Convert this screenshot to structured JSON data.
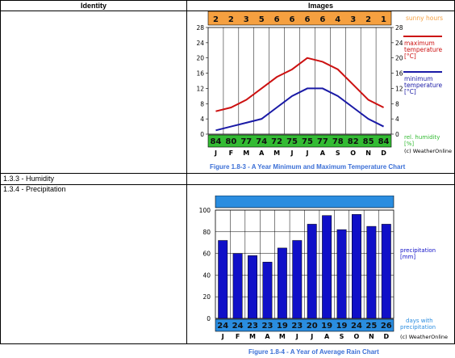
{
  "table": {
    "headers": [
      "Identity",
      "Images"
    ],
    "rows": [
      {
        "identity": "",
        "image": "figure1"
      },
      {
        "identity": "1.3.3 - Humidity",
        "image": ""
      },
      {
        "identity": "1.3.4 - Precipitation",
        "image": "figure2"
      }
    ]
  },
  "chart_data": [
    {
      "type": "line",
      "caption": "Figure 1.8-3 - A Year Minimum and Maximum Temperature Chart",
      "categories": [
        "J",
        "F",
        "M",
        "A",
        "M",
        "J",
        "J",
        "A",
        "S",
        "O",
        "N",
        "D"
      ],
      "sunny_hours": [
        2,
        2,
        3,
        5,
        6,
        6,
        6,
        6,
        4,
        3,
        2,
        1
      ],
      "sunny_label": "sunny hours",
      "humidity": [
        84,
        80,
        77,
        74,
        72,
        75,
        75,
        77,
        78,
        82,
        85,
        84
      ],
      "humidity_label": "rel. humidity [%]",
      "series": [
        {
          "name": "maximum temperature [°C]",
          "color": "#cc1111",
          "values": [
            6,
            7,
            9,
            12,
            15,
            17,
            20,
            19,
            17,
            13,
            9,
            7
          ]
        },
        {
          "name": "minimum temperature [°C]",
          "color": "#1a1aa6",
          "values": [
            1,
            2,
            3,
            4,
            7,
            10,
            12,
            12,
            10,
            7,
            4,
            2
          ]
        }
      ],
      "y_ticks": [
        0,
        4,
        8,
        12,
        16,
        20,
        24,
        28
      ],
      "ylim": [
        0,
        28
      ],
      "credit": "(c) WeatherOnline",
      "colors": {
        "sun_band": "#f5a040",
        "humidity_band": "#33bb33"
      }
    },
    {
      "type": "bar",
      "caption": "Figure 1.8-4 - A Year of Average Rain Chart",
      "categories": [
        "J",
        "F",
        "M",
        "A",
        "M",
        "J",
        "J",
        "A",
        "S",
        "O",
        "N",
        "D"
      ],
      "values": [
        72,
        60,
        58,
        52,
        65,
        72,
        87,
        95,
        82,
        96,
        85,
        87
      ],
      "series_label": "precipitation [mm]",
      "rain_days": [
        24,
        24,
        23,
        23,
        19,
        23,
        20,
        19,
        19,
        24,
        25,
        26
      ],
      "rain_days_label": "days with precipitation",
      "y_ticks": [
        0,
        20,
        40,
        60,
        80,
        100
      ],
      "ylim": [
        0,
        100
      ],
      "credit": "(c) WeatherOnline",
      "colors": {
        "bar": "#1010c8",
        "band": "#2a8de0",
        "label": "#3b6fd6"
      }
    }
  ]
}
